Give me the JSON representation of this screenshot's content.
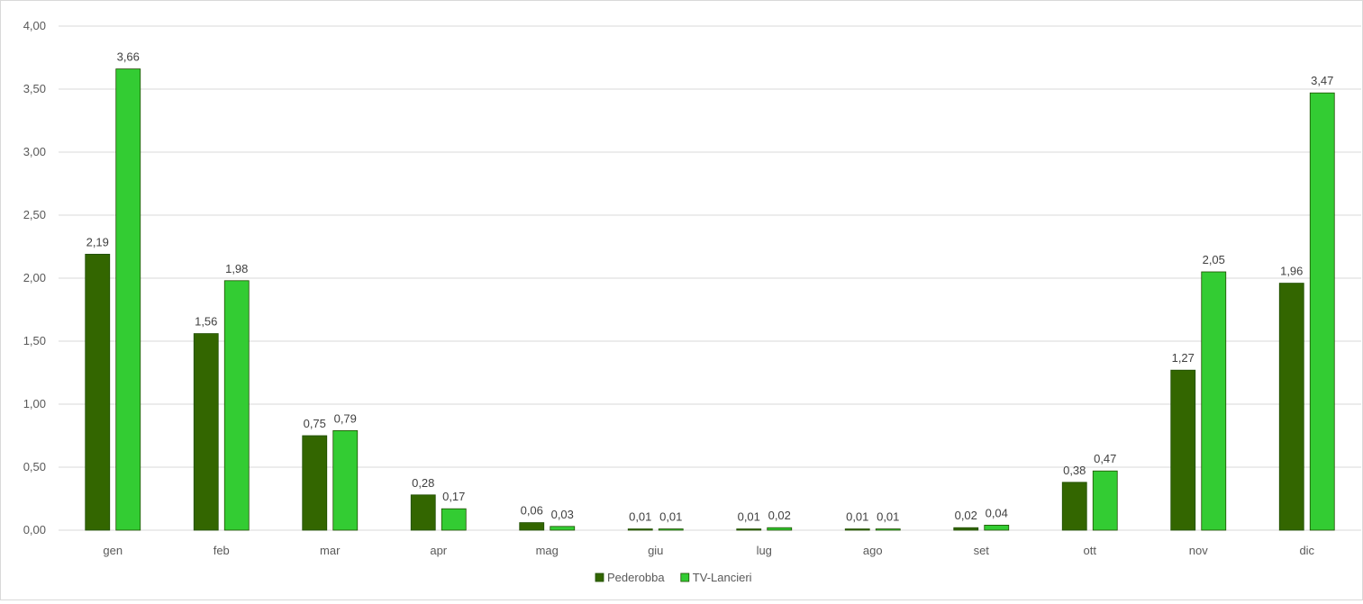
{
  "chart_data": {
    "type": "bar",
    "categories": [
      "gen",
      "feb",
      "mar",
      "apr",
      "mag",
      "giu",
      "lug",
      "ago",
      "set",
      "ott",
      "nov",
      "dic"
    ],
    "series": [
      {
        "name": "Pederobba",
        "color": "#336600",
        "values": [
          2.19,
          1.56,
          0.75,
          0.28,
          0.06,
          0.01,
          0.01,
          0.01,
          0.02,
          0.38,
          1.27,
          1.96
        ],
        "labels": [
          "2,19",
          "1,56",
          "0,75",
          "0,28",
          "0,06",
          "0,01",
          "0,01",
          "0,01",
          "0,02",
          "0,38",
          "1,27",
          "1,96"
        ]
      },
      {
        "name": "TV-Lancieri",
        "color": "#33cc33",
        "values": [
          3.66,
          1.98,
          0.79,
          0.17,
          0.03,
          0.01,
          0.02,
          0.01,
          0.04,
          0.47,
          2.05,
          3.47
        ],
        "labels": [
          "3,66",
          "1,98",
          "0,79",
          "0,17",
          "0,03",
          "0,01",
          "0,02",
          "0,01",
          "0,04",
          "0,47",
          "2,05",
          "3,47"
        ]
      }
    ],
    "yticks": [
      "0,00",
      "0,50",
      "1,00",
      "1,50",
      "2,00",
      "2,50",
      "3,00",
      "3,50",
      "4,00"
    ],
    "ylim": [
      0,
      4
    ],
    "grid": true,
    "legend_position": "bottom",
    "gridline_color": "#d9d9d9",
    "bar_outline_color": "#1e4d00"
  }
}
